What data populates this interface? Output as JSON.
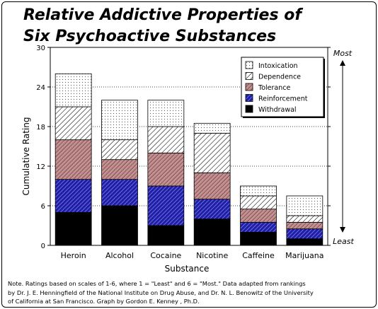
{
  "chart_data": {
    "type": "bar",
    "stacked": true,
    "title": [
      "Relative Addictive Properties of",
      "Six Psychoactive Substances"
    ],
    "xlabel": "Substance",
    "ylabel": "Cumulative Rating",
    "ylim": [
      0,
      30
    ],
    "yticks": [
      "0",
      "6",
      "12",
      "18",
      "24",
      "30"
    ],
    "grid": true,
    "legend_position": "top-right",
    "categories": [
      "Heroin",
      "Alcohol",
      "Cocaine",
      "Nicotine",
      "Caffeine",
      "Marijuana"
    ],
    "series": [
      {
        "name": "Withdrawal",
        "pattern": "solid-black",
        "values": [
          5,
          6,
          3,
          4,
          2,
          1
        ]
      },
      {
        "name": "Reinforcement",
        "pattern": "blue-hatch",
        "values": [
          5,
          4,
          6,
          3,
          1.5,
          1.5
        ]
      },
      {
        "name": "Tolerance",
        "pattern": "red-hatch",
        "values": [
          6,
          3,
          5,
          4,
          2,
          1
        ]
      },
      {
        "name": "Dependence",
        "pattern": "diagonal-hatch",
        "values": [
          5,
          3,
          4,
          6,
          2,
          1
        ]
      },
      {
        "name": "Intoxication",
        "pattern": "dots",
        "values": [
          5,
          6,
          4,
          1.5,
          1.5,
          3
        ]
      }
    ],
    "legend_order": [
      "Intoxication",
      "Dependence",
      "Tolerance",
      "Reinforcement",
      "Withdrawal"
    ],
    "scale_top_label": "Most",
    "scale_bottom_label": "Least",
    "note": [
      "Note.  Ratings based on scales of 1-6, where 1 = \"Least\" and 6 = \"Most.\"  Data adapted from rankings",
      "by Dr. J. E. Henningfield of the National Institute on Drug Abuse, and Dr. N. L. Benowitz of the University",
      "of California at San Francisco.  Graph by Gordon E. Kenney , Ph.D."
    ],
    "colors": {
      "withdrawal": "#000000",
      "reinforcement_fill": "#1f1fa3",
      "reinforcement_stroke": "#8a8aff",
      "tolerance_fill": "#b88080",
      "tolerance_stroke": "#4a1e1e",
      "dependence_stroke": "#000000",
      "intoxication_dot": "#555555"
    }
  }
}
